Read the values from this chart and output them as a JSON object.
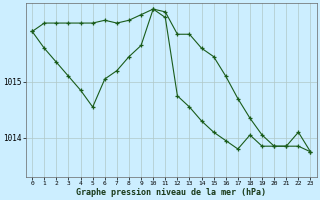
{
  "xlabel": "Graphe pression niveau de la mer (hPa)",
  "bg_color": "#cceeff",
  "grid_color": "#b0c8c8",
  "line_color": "#1a5c1a",
  "marker_color": "#1a5c1a",
  "x_ticks": [
    0,
    1,
    2,
    3,
    4,
    5,
    6,
    7,
    8,
    9,
    10,
    11,
    12,
    13,
    14,
    15,
    16,
    17,
    18,
    19,
    20,
    21,
    22,
    23
  ],
  "ylim": [
    1013.3,
    1016.4
  ],
  "yticks": [
    1014,
    1015
  ],
  "series1": [
    1015.9,
    1016.05,
    1016.05,
    1016.05,
    1016.05,
    1016.05,
    1016.1,
    1016.05,
    1016.1,
    1016.2,
    1016.3,
    1016.25,
    1015.85,
    1015.85,
    1015.6,
    1015.45,
    1015.1,
    1014.7,
    1014.35,
    1014.05,
    1013.85,
    1013.85,
    1014.1,
    1013.75
  ],
  "series2": [
    1015.9,
    1015.6,
    1015.35,
    1015.1,
    1014.85,
    1014.55,
    1015.05,
    1015.2,
    1015.45,
    1015.65,
    1016.3,
    1016.15,
    1014.75,
    1014.55,
    1014.3,
    1014.1,
    1013.95,
    1013.8,
    1014.05,
    1013.85,
    1013.85,
    1013.85,
    1013.85,
    1013.75
  ]
}
